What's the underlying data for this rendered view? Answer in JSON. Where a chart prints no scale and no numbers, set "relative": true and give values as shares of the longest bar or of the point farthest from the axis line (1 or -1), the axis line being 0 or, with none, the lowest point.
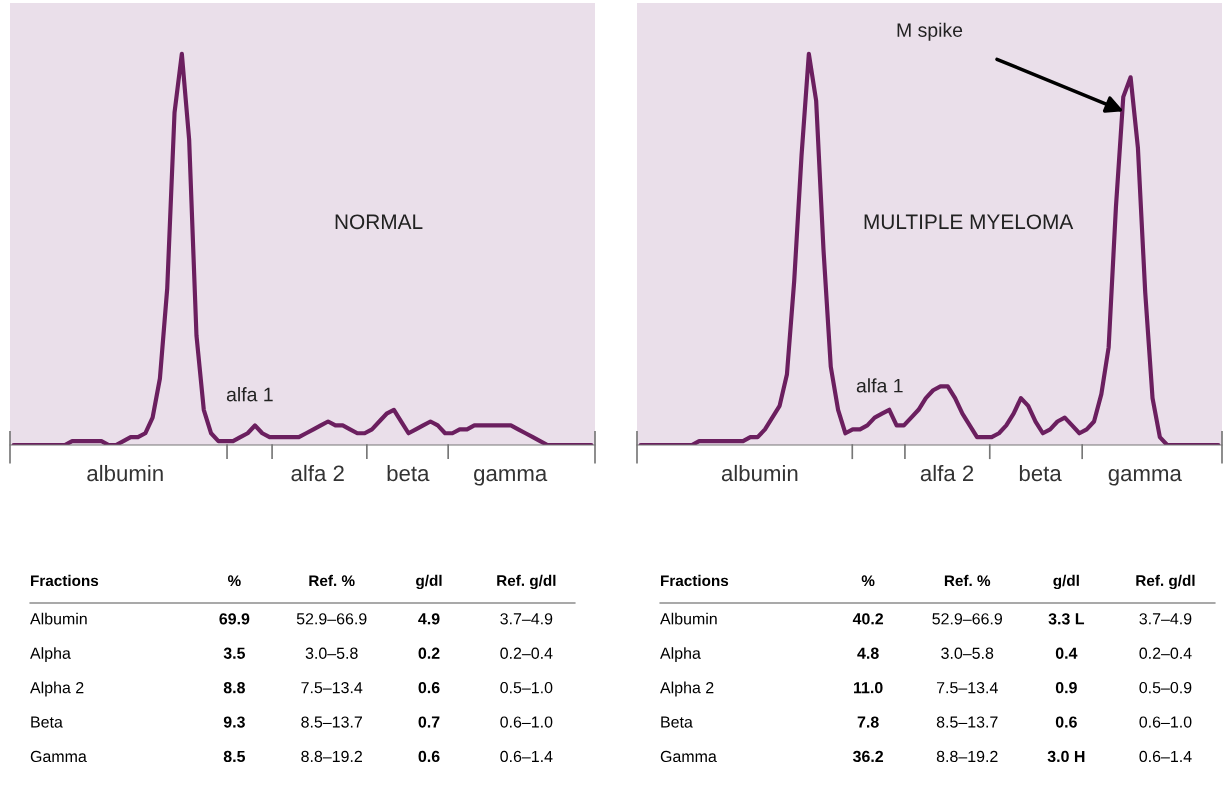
{
  "chart_data": [
    {
      "type": "line",
      "title": "NORMAL",
      "relative": true,
      "color": "#6b1f5f",
      "categories": [
        null,
        null,
        null,
        null,
        null,
        null,
        null,
        null,
        null,
        null,
        null,
        null,
        null,
        null,
        null,
        null,
        null,
        null,
        null,
        null,
        null,
        null,
        null,
        null,
        null,
        null,
        null,
        null,
        null,
        null,
        null,
        null,
        null,
        null,
        null,
        null,
        null,
        null,
        null,
        null,
        null,
        null,
        null,
        null,
        null,
        null,
        null,
        null,
        null,
        null,
        null,
        null,
        null,
        null,
        null,
        null,
        null,
        null,
        null,
        null,
        null,
        null,
        null,
        null,
        null,
        null,
        null,
        null,
        null,
        null,
        null,
        null,
        null,
        null,
        null,
        null,
        null,
        null,
        null,
        null
      ],
      "values": [
        0,
        0,
        0,
        0,
        0,
        0,
        0,
        0,
        0.01,
        0.01,
        0.01,
        0.01,
        0.01,
        0,
        0,
        0.01,
        0.02,
        0.02,
        0.03,
        0.07,
        0.17,
        0.4,
        0.85,
        1,
        0.78,
        0.28,
        0.09,
        0.03,
        0.01,
        0.01,
        0.01,
        0.02,
        0.03,
        0.05,
        0.03,
        0.02,
        0.02,
        0.02,
        0.02,
        0.02,
        0.03,
        0.04,
        0.05,
        0.06,
        0.05,
        0.05,
        0.04,
        0.03,
        0.03,
        0.04,
        0.06,
        0.08,
        0.09,
        0.06,
        0.03,
        0.04,
        0.05,
        0.06,
        0.05,
        0.03,
        0.03,
        0.04,
        0.04,
        0.05,
        0.05,
        0.05,
        0.05,
        0.05,
        0.05,
        0.04,
        0.03,
        0.02,
        0.01,
        0,
        0,
        0,
        0,
        0,
        0,
        0
      ],
      "annotations": [
        "alfa 1",
        "albumin",
        "alfa 2",
        "beta",
        "gamma"
      ]
    },
    {
      "type": "line",
      "title": "MULTIPLE MYELOMA",
      "relative": true,
      "color": "#6b1f5f",
      "categories": [
        null,
        null,
        null,
        null,
        null,
        null,
        null,
        null,
        null,
        null,
        null,
        null,
        null,
        null,
        null,
        null,
        null,
        null,
        null,
        null,
        null,
        null,
        null,
        null,
        null,
        null,
        null,
        null,
        null,
        null,
        null,
        null,
        null,
        null,
        null,
        null,
        null,
        null,
        null,
        null,
        null,
        null,
        null,
        null,
        null,
        null,
        null,
        null,
        null,
        null,
        null,
        null,
        null,
        null,
        null,
        null,
        null,
        null,
        null,
        null,
        null,
        null,
        null,
        null,
        null,
        null,
        null,
        null,
        null,
        null,
        null,
        null,
        null,
        null,
        null,
        null,
        null,
        null,
        null,
        null
      ],
      "values": [
        0,
        0,
        0,
        0,
        0,
        0,
        0,
        0,
        0.01,
        0.01,
        0.01,
        0.01,
        0.01,
        0.01,
        0.01,
        0.02,
        0.02,
        0.04,
        0.07,
        0.1,
        0.18,
        0.42,
        0.74,
        1,
        0.88,
        0.5,
        0.2,
        0.09,
        0.03,
        0.04,
        0.04,
        0.05,
        0.07,
        0.08,
        0.09,
        0.05,
        0.05,
        0.07,
        0.09,
        0.12,
        0.14,
        0.15,
        0.15,
        0.12,
        0.08,
        0.05,
        0.02,
        0.02,
        0.02,
        0.03,
        0.05,
        0.08,
        0.12,
        0.1,
        0.06,
        0.03,
        0.04,
        0.06,
        0.07,
        0.05,
        0.03,
        0.04,
        0.06,
        0.13,
        0.25,
        0.61,
        0.89,
        0.94,
        0.76,
        0.39,
        0.12,
        0.02,
        0,
        0,
        0,
        0,
        0,
        0,
        0,
        0
      ],
      "annotations": [
        "alfa 1",
        "M spike",
        "albumin",
        "alfa 2",
        "beta",
        "gamma"
      ]
    },
    {
      "type": "heatmap",
      "ylabel": "Fractions",
      "categories": [
        "%",
        "Ref. %",
        "g/dl",
        "Ref. g/dl"
      ],
      "y_categories": [
        "Albumin",
        "Alpha",
        "Alpha 2",
        "Beta",
        "Gamma"
      ],
      "cells": [
        [
          null,
          null,
          null,
          null
        ],
        [
          null,
          null,
          null,
          null
        ],
        [
          null,
          null,
          null,
          null
        ],
        [
          null,
          null,
          null,
          null
        ],
        [
          null,
          null,
          null,
          null
        ]
      ],
      "cell_labels": [
        [
          "69.9",
          "52.9–66.9",
          "4.9",
          "3.7–4.9"
        ],
        [
          "3.5",
          "3.0–5.8",
          "0.2",
          "0.2–0.4"
        ],
        [
          "8.8",
          "7.5–13.4",
          "0.6",
          "0.5–1.0"
        ],
        [
          "9.3",
          "8.5–13.7",
          "0.7",
          "0.6–1.0"
        ],
        [
          "8.5",
          "8.8–19.2",
          "0.6",
          "0.6–1.4"
        ]
      ]
    },
    {
      "type": "heatmap",
      "ylabel": "Fractions",
      "categories": [
        "%",
        "Ref. %",
        "g/dl",
        "Ref. g/dl"
      ],
      "y_categories": [
        "Albumin",
        "Alpha",
        "Alpha 2",
        "Beta",
        "Gamma"
      ],
      "cells": [
        [
          null,
          null,
          null,
          null
        ],
        [
          null,
          null,
          null,
          null
        ],
        [
          null,
          null,
          null,
          null
        ],
        [
          null,
          null,
          null,
          null
        ],
        [
          null,
          null,
          null,
          null
        ]
      ],
      "cell_labels": [
        [
          "40.2",
          "52.9–66.9",
          "3.3 L",
          "3.7–4.9"
        ],
        [
          "4.8",
          "3.0–5.8",
          "0.4",
          "0.2–0.4"
        ],
        [
          "11.0",
          "7.5–13.4",
          "0.9",
          "0.5–0.9"
        ],
        [
          "7.8",
          "8.5–13.7",
          "0.6",
          "0.6–1.0"
        ],
        [
          "36.2",
          "8.8–19.2",
          "3.0 H",
          "0.6–1.4"
        ]
      ]
    }
  ]
}
